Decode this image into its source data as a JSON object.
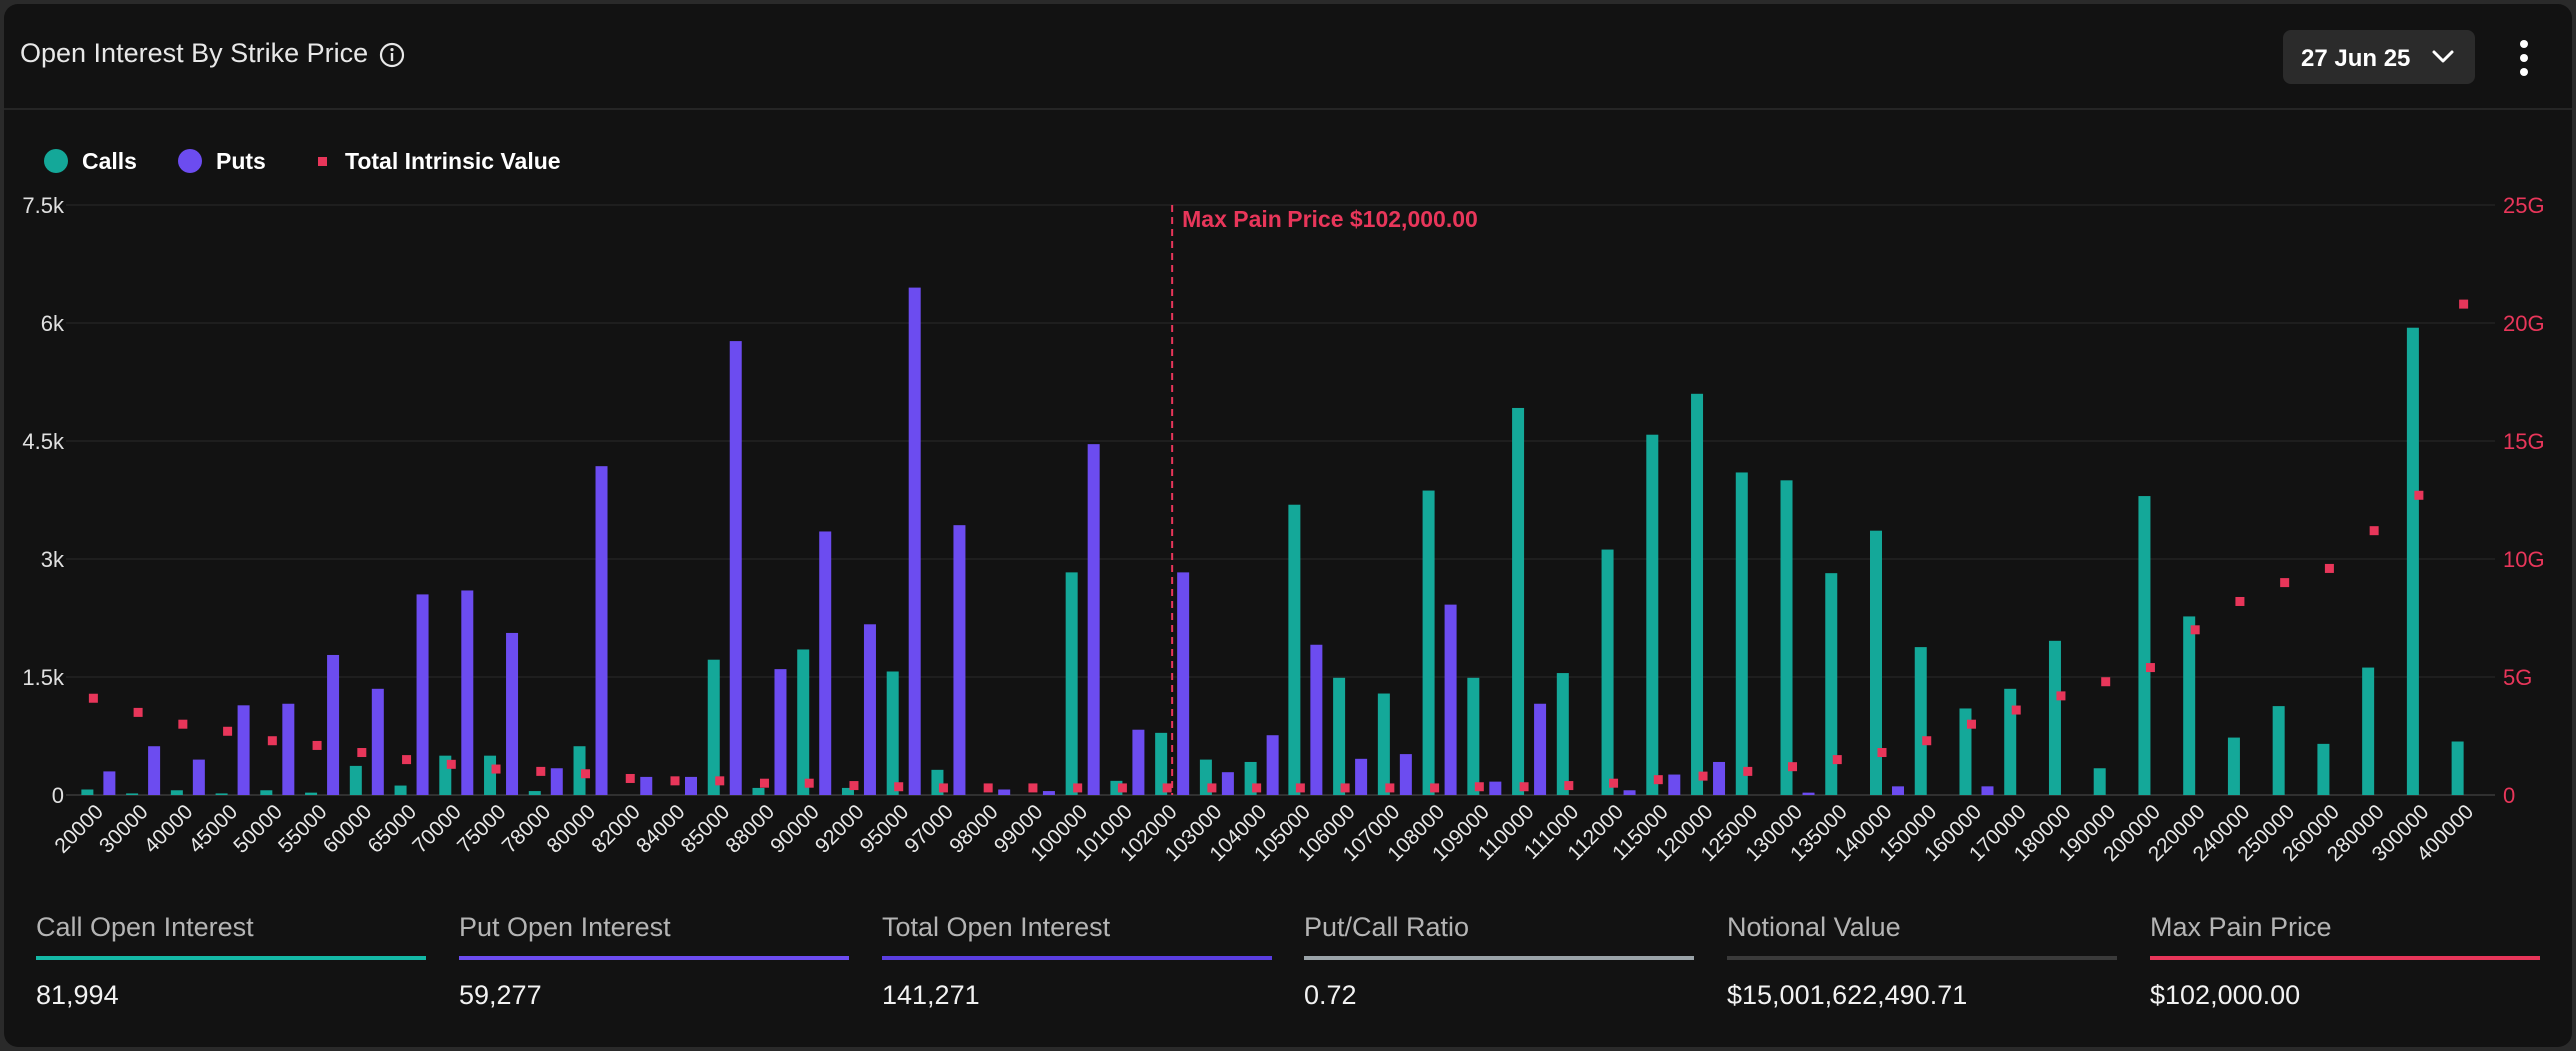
{
  "title": "Open Interest By Strike Price",
  "expiry_selector": {
    "selected": "27 Jun 25"
  },
  "icons": {
    "info": "info-circle-icon",
    "expiry_chevron": "chevron-down-icon",
    "more": "more-vertical-icon"
  },
  "legend": [
    {
      "label": "Calls",
      "color": "#14a899",
      "shape": "circle"
    },
    {
      "label": "Puts",
      "color": "#6c4cf0",
      "shape": "circle"
    },
    {
      "label": "Total Intrinsic Value",
      "color": "#e8365a",
      "shape": "square"
    }
  ],
  "stats": [
    {
      "label": "Call Open Interest",
      "value": "81,994",
      "color": "#14b8a6"
    },
    {
      "label": "Put Open Interest",
      "value": "59,277",
      "color": "#6c4cf0"
    },
    {
      "label": "Total Open Interest",
      "value": "141,271",
      "color": "#5a3ee0"
    },
    {
      "label": "Put/Call Ratio",
      "value": "0.72",
      "color": "#9aa3a8"
    },
    {
      "label": "Notional Value",
      "value": "$15,001,622,490.71",
      "color": "#3a3a3a"
    },
    {
      "label": "Max Pain Price",
      "value": "$102,000.00",
      "color": "#e8365a"
    }
  ],
  "chart_data": {
    "type": "bar",
    "categories": [
      "20000",
      "30000",
      "40000",
      "45000",
      "50000",
      "55000",
      "60000",
      "65000",
      "70000",
      "75000",
      "78000",
      "80000",
      "82000",
      "84000",
      "85000",
      "88000",
      "90000",
      "92000",
      "95000",
      "97000",
      "98000",
      "99000",
      "100000",
      "101000",
      "102000",
      "103000",
      "104000",
      "105000",
      "106000",
      "107000",
      "108000",
      "109000",
      "110000",
      "111000",
      "112000",
      "115000",
      "120000",
      "125000",
      "130000",
      "135000",
      "140000",
      "150000",
      "160000",
      "170000",
      "180000",
      "190000",
      "200000",
      "220000",
      "240000",
      "250000",
      "260000",
      "280000",
      "300000",
      "400000"
    ],
    "series": [
      {
        "name": "Calls",
        "axis": "left",
        "color": "#14a899",
        "values": [
          70,
          20,
          60,
          20,
          60,
          30,
          370,
          120,
          500,
          500,
          50,
          620,
          0,
          0,
          1720,
          90,
          1850,
          90,
          1570,
          320,
          0,
          0,
          2830,
          180,
          790,
          450,
          420,
          3690,
          1490,
          1290,
          3870,
          1490,
          4920,
          1550,
          3120,
          4580,
          5100,
          4100,
          4000,
          2820,
          3360,
          1880,
          1100,
          1350,
          1960,
          340,
          3800,
          2270,
          730,
          1130,
          650,
          1620,
          5940,
          680
        ]
      },
      {
        "name": "Puts",
        "axis": "left",
        "color": "#6c4cf0",
        "values": [
          300,
          620,
          450,
          1140,
          1160,
          1780,
          1350,
          2550,
          2600,
          2060,
          340,
          4180,
          230,
          230,
          5770,
          1600,
          3350,
          2170,
          6450,
          3430,
          70,
          50,
          4460,
          830,
          2830,
          290,
          760,
          1910,
          460,
          520,
          2420,
          170,
          1160,
          0,
          60,
          260,
          420,
          0,
          30,
          0,
          110,
          0,
          110,
          0,
          0,
          0,
          0,
          0,
          0,
          0,
          0,
          0,
          0,
          0
        ]
      },
      {
        "name": "Total Intrinsic Value",
        "axis": "right",
        "color": "#e8365a",
        "values": [
          4.1,
          3.5,
          3.0,
          2.7,
          2.3,
          2.1,
          1.8,
          1.5,
          1.3,
          1.1,
          1.0,
          0.9,
          0.7,
          0.6,
          0.6,
          0.5,
          0.5,
          0.4,
          0.35,
          0.3,
          0.3,
          0.3,
          0.3,
          0.3,
          0.3,
          0.3,
          0.3,
          0.3,
          0.3,
          0.3,
          0.3,
          0.35,
          0.35,
          0.4,
          0.5,
          0.65,
          0.8,
          1.0,
          1.2,
          1.5,
          1.8,
          2.3,
          3.0,
          3.6,
          4.2,
          4.8,
          5.4,
          7.0,
          8.2,
          9.0,
          9.6,
          11.2,
          12.7,
          20.8
        ]
      }
    ],
    "y_left": {
      "min": 0,
      "max": 7500,
      "ticks": [
        "0",
        "1.5k",
        "3k",
        "4.5k",
        "6k",
        "7.5k"
      ]
    },
    "y_right": {
      "min": 0,
      "max": 25,
      "unit": "G",
      "ticks": [
        "0",
        "5G",
        "10G",
        "15G",
        "20G",
        "25G"
      ]
    },
    "max_pain": {
      "category": "102000",
      "label": "Max Pain Price $102,000.00",
      "color": "#e8365a"
    },
    "grid": true,
    "legend_position": "top-left"
  }
}
